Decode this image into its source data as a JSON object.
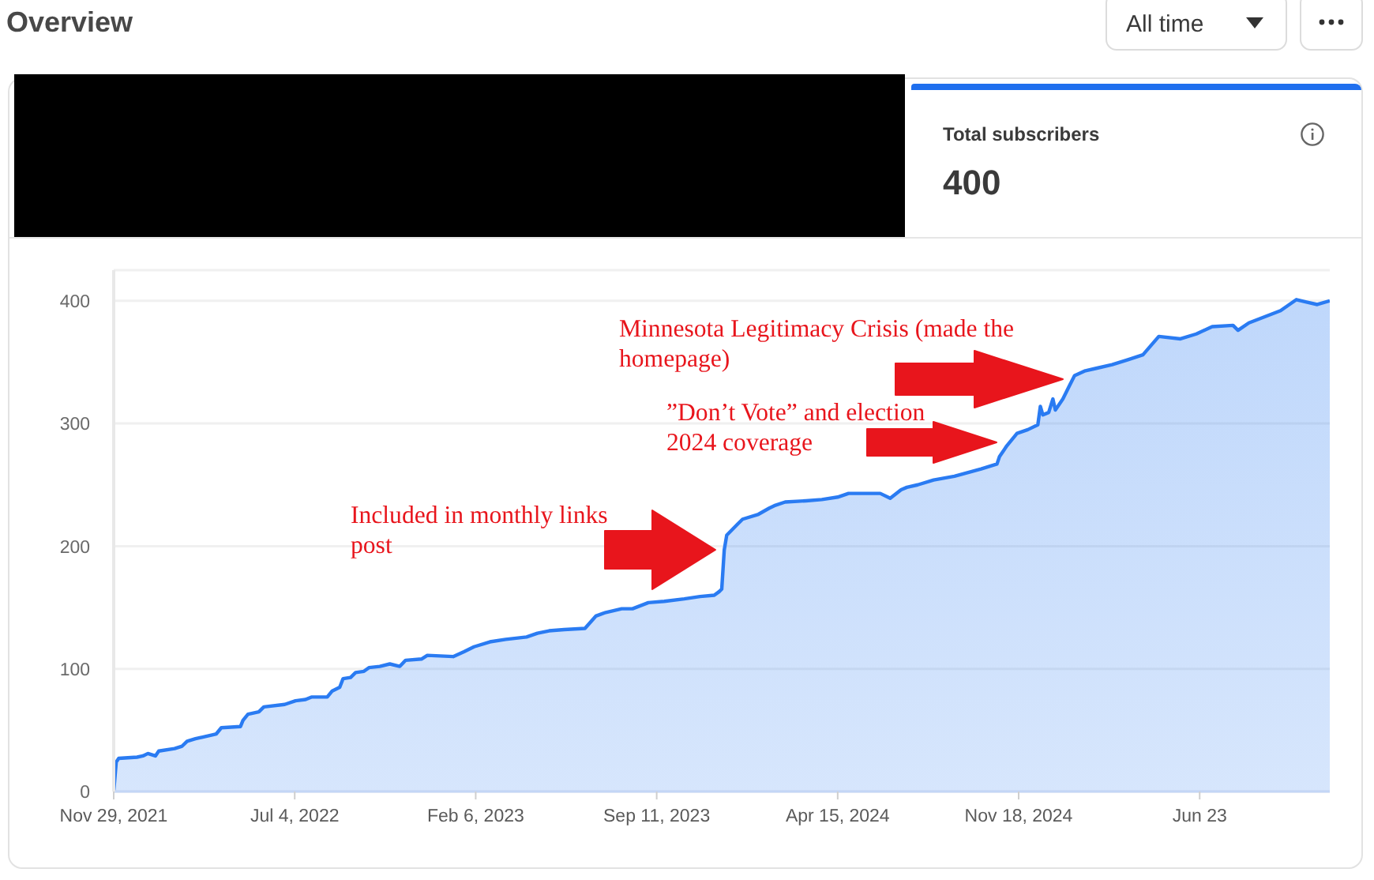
{
  "chart_data": {
    "type": "area",
    "title": "Overview",
    "annotations": [
      "All time",
      "Total subscribers",
      "400",
      "Included in monthly links post",
      "”Don’t Vote” and election 2024 coverage",
      "Minnesota Legitimacy Crisis (made the homepage)"
    ],
    "x": [
      "2021-11-29",
      "2021-12-02",
      "2021-12-05",
      "2021-12-27",
      "2022-01-03",
      "2022-01-09",
      "2022-01-18",
      "2022-01-22",
      "2022-02-10",
      "2022-02-19",
      "2022-02-25",
      "2022-03-07",
      "2022-03-26",
      "2022-04-01",
      "2022-04-07",
      "2022-04-30",
      "2022-05-03",
      "2022-05-09",
      "2022-05-22",
      "2022-05-28",
      "2022-06-22",
      "2022-07-05",
      "2022-07-17",
      "2022-07-24",
      "2022-08-12",
      "2022-08-18",
      "2022-08-27",
      "2022-08-31",
      "2022-09-09",
      "2022-09-15",
      "2022-09-25",
      "2022-10-01",
      "2022-10-14",
      "2022-10-26",
      "2022-11-07",
      "2022-11-14",
      "2022-12-03",
      "2022-12-10",
      "2023-01-10",
      "2023-01-23",
      "2023-02-04",
      "2023-02-23",
      "2023-03-14",
      "2023-04-08",
      "2023-04-21",
      "2023-05-05",
      "2023-05-23",
      "2023-06-17",
      "2023-06-30",
      "2023-07-12",
      "2023-07-31",
      "2023-08-13",
      "2023-09-01",
      "2023-09-20",
      "2023-10-14",
      "2023-11-02",
      "2023-11-19",
      "2023-11-25",
      "2023-11-28",
      "2023-12-01",
      "2023-12-04",
      "2023-12-17",
      "2023-12-23",
      "2024-01-11",
      "2024-01-24",
      "2024-01-30",
      "2024-02-12",
      "2024-03-08",
      "2024-03-27",
      "2024-04-15",
      "2024-04-28",
      "2024-05-17",
      "2024-06-05",
      "2024-06-17",
      "2024-06-30",
      "2024-07-07",
      "2024-07-20",
      "2024-08-08",
      "2024-09-02",
      "2024-10-04",
      "2024-10-23",
      "2024-10-26",
      "2024-11-04",
      "2024-11-16",
      "2024-11-29",
      "2024-12-11",
      "2024-12-14",
      "2024-12-17",
      "2024-12-24",
      "2024-12-29",
      "2025-01-01",
      "2025-01-10",
      "2025-01-18",
      "2025-01-24",
      "2025-02-06",
      "2025-02-19",
      "2025-03-10",
      "2025-03-29",
      "2025-04-16",
      "2025-05-05",
      "2025-05-31",
      "2025-06-19",
      "2025-07-08",
      "2025-08-02",
      "2025-08-08",
      "2025-08-21",
      "2025-09-09",
      "2025-09-28",
      "2025-10-17",
      "2025-10-29",
      "2025-11-11",
      "2025-11-26"
    ],
    "values": [
      0,
      24,
      27,
      28,
      29,
      31,
      29,
      33,
      35,
      37,
      41,
      43,
      46,
      47,
      52,
      53,
      58,
      63,
      65,
      69,
      71,
      74,
      75,
      77,
      77,
      82,
      85,
      92,
      93,
      97,
      98,
      101,
      102,
      104,
      102,
      107,
      108,
      111,
      110,
      114,
      118,
      122,
      124,
      126,
      129,
      131,
      132,
      133,
      143,
      146,
      149,
      149,
      154,
      155,
      157,
      159,
      160,
      163,
      165,
      197,
      209,
      218,
      222,
      226,
      231,
      233,
      236,
      237,
      238,
      240,
      243,
      243,
      243,
      239,
      246,
      248,
      250,
      254,
      257,
      263,
      267,
      273,
      282,
      292,
      295,
      299,
      314,
      307,
      309,
      320,
      311,
      320,
      331,
      339,
      343,
      345,
      348,
      352,
      356,
      371,
      369,
      373,
      379,
      380,
      376,
      382,
      387,
      392,
      401,
      399,
      397,
      400
    ],
    "color": "#2a7bf2",
    "xlim": [
      "2021-11-29",
      "2025-11-26"
    ],
    "xticks": [
      {
        "value": "2021-11-29",
        "label": "Nov 29, 2021"
      },
      {
        "value": "2022-07-04",
        "label": "Jul 4, 2022"
      },
      {
        "value": "2023-02-06",
        "label": "Feb 6, 2023"
      },
      {
        "value": "2023-09-11",
        "label": "Sep 11, 2023"
      },
      {
        "value": "2024-04-15",
        "label": "Apr 15, 2024"
      },
      {
        "value": "2024-11-18",
        "label": "Nov 18, 2024"
      },
      {
        "value": "2025-06-23",
        "label": "Jun 23"
      }
    ],
    "ylim": [
      0,
      425
    ],
    "yticks": [
      0,
      100,
      200,
      300,
      400
    ],
    "grid": "y"
  }
}
